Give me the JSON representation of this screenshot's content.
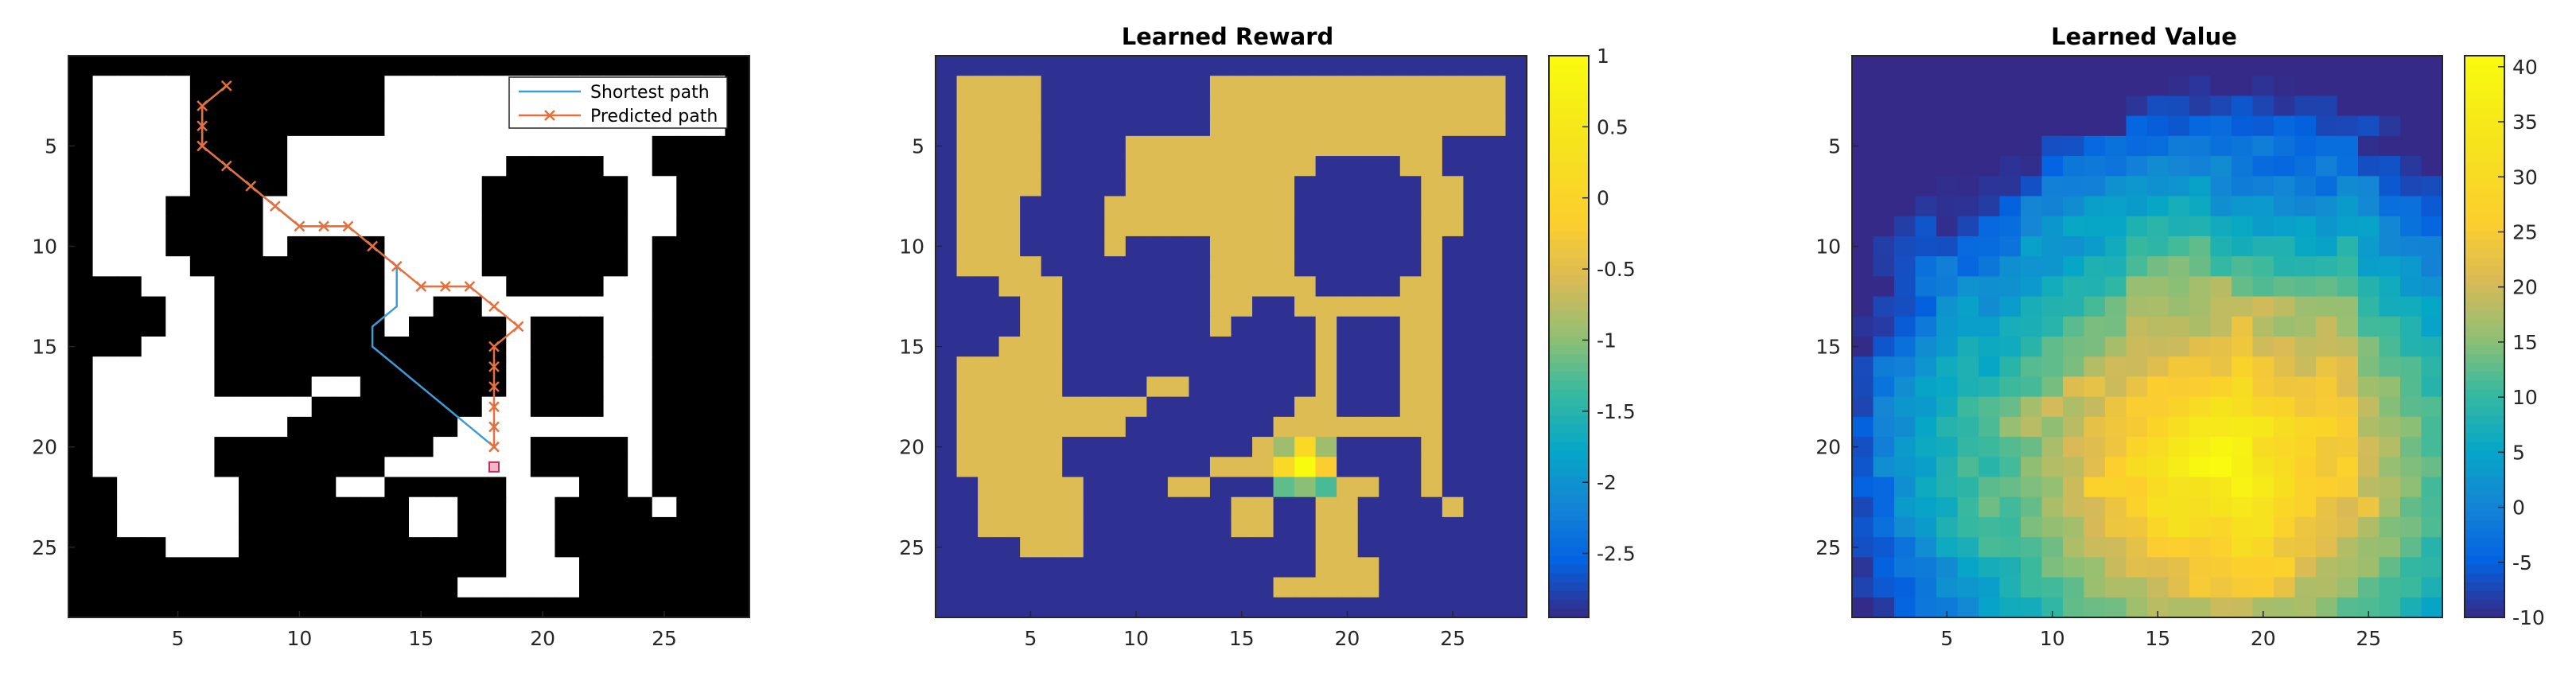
{
  "chart_data": [
    {
      "type": "heatmap",
      "title": "",
      "xlabel": "",
      "ylabel": "",
      "xlim": [
        0.5,
        28.5
      ],
      "ylim": [
        0.5,
        28.5
      ],
      "xticks": [
        "5",
        "10",
        "15",
        "20",
        "25"
      ],
      "yticks": [
        "5",
        "10",
        "15",
        "20",
        "25"
      ],
      "colormap": "gray",
      "legend": {
        "placement": "top-right",
        "entries": [
          {
            "label": "Shortest path",
            "color": "#3d9bd6",
            "marker": "none"
          },
          {
            "label": "Predicted path",
            "color": "#e5703d",
            "marker": "x"
          }
        ]
      },
      "series": [
        {
          "name": "Shortest path",
          "points": [
            [
              7,
              2
            ],
            [
              6,
              3
            ],
            [
              6,
              4
            ],
            [
              6,
              5
            ],
            [
              7,
              6
            ],
            [
              8,
              7
            ],
            [
              9,
              8
            ],
            [
              10,
              9
            ],
            [
              11,
              9
            ],
            [
              12,
              9
            ],
            [
              13,
              10
            ],
            [
              14,
              11
            ],
            [
              14,
              12
            ],
            [
              14,
              13
            ],
            [
              13,
              14
            ],
            [
              13,
              15
            ],
            [
              14,
              16
            ],
            [
              15,
              17
            ],
            [
              16,
              18
            ],
            [
              17,
              19
            ],
            [
              18,
              20
            ]
          ]
        },
        {
          "name": "Predicted path",
          "points": [
            [
              7,
              2
            ],
            [
              6,
              3
            ],
            [
              6,
              4
            ],
            [
              6,
              5
            ],
            [
              7,
              6
            ],
            [
              8,
              7
            ],
            [
              9,
              8
            ],
            [
              10,
              9
            ],
            [
              11,
              9
            ],
            [
              12,
              9
            ],
            [
              13,
              10
            ],
            [
              14,
              11
            ],
            [
              15,
              12
            ],
            [
              16,
              12
            ],
            [
              17,
              12
            ],
            [
              18,
              13
            ],
            [
              19,
              14
            ],
            [
              18,
              15
            ],
            [
              18,
              16
            ],
            [
              18,
              17
            ],
            [
              18,
              18
            ],
            [
              18,
              19
            ],
            [
              18,
              20
            ]
          ]
        }
      ],
      "goal": [
        18,
        21
      ]
    },
    {
      "type": "heatmap",
      "title": "Learned Reward",
      "xlabel": "",
      "ylabel": "",
      "xlim": [
        0.5,
        28.5
      ],
      "ylim": [
        0.5,
        28.5
      ],
      "xticks": [
        "5",
        "10",
        "15",
        "20",
        "25"
      ],
      "yticks": [
        "5",
        "10",
        "15",
        "20",
        "25"
      ],
      "colormap": "parula",
      "colorbar": {
        "range": [
          -2.95,
          1
        ],
        "ticks": [
          "1",
          "0.5",
          "0",
          "-0.5",
          "-1",
          "-1.5",
          "-2",
          "-2.5"
        ],
        "tick_values": [
          1,
          0.5,
          0,
          -0.5,
          -1,
          -1.5,
          -2,
          -2.5
        ]
      },
      "free_value": -0.55,
      "obstacle_value": -2.9,
      "border_value": -2.9,
      "goal_region": [
        {
          "x": 17,
          "y": 20,
          "value": -0.9
        },
        {
          "x": 18,
          "y": 20,
          "value": 0.1
        },
        {
          "x": 19,
          "y": 20,
          "value": -0.9
        },
        {
          "x": 17,
          "y": 21,
          "value": 0.1
        },
        {
          "x": 18,
          "y": 21,
          "value": 1
        },
        {
          "x": 19,
          "y": 21,
          "value": -0.2
        },
        {
          "x": 17,
          "y": 22,
          "value": -1.2
        },
        {
          "x": 18,
          "y": 22,
          "value": -1.0
        },
        {
          "x": 19,
          "y": 22,
          "value": -1.3
        }
      ]
    },
    {
      "type": "heatmap",
      "title": "Learned Value",
      "xlabel": "",
      "ylabel": "",
      "xlim": [
        0.5,
        28.5
      ],
      "ylim": [
        0.5,
        28.5
      ],
      "xticks": [
        "5",
        "10",
        "15",
        "20",
        "25"
      ],
      "yticks": [
        "5",
        "10",
        "15",
        "20",
        "25"
      ],
      "colormap": "parula",
      "colorbar": {
        "range": [
          -10,
          41
        ],
        "ticks": [
          "40",
          "35",
          "30",
          "25",
          "20",
          "15",
          "10",
          "5",
          "0",
          "-5",
          "-10"
        ],
        "tick_values": [
          40,
          35,
          30,
          25,
          20,
          15,
          10,
          5,
          0,
          -5,
          -10
        ]
      },
      "peak": {
        "x": 18,
        "y": 21,
        "value": 41
      },
      "min_value": -10
    }
  ],
  "grid": {
    "size": 28,
    "obstacles": [
      [
        6,
        2,
        9,
        7
      ],
      [
        9,
        2,
        13,
        4
      ],
      [
        25,
        5,
        28,
        6
      ],
      [
        5,
        8,
        8,
        10
      ],
      [
        6,
        7,
        7,
        11
      ],
      [
        18,
        7,
        23,
        11
      ],
      [
        19,
        6,
        22,
        12
      ],
      [
        26,
        7,
        28,
        14
      ],
      [
        10,
        10,
        13,
        15
      ],
      [
        7,
        11,
        13,
        16
      ],
      [
        7,
        13,
        10,
        17
      ],
      [
        1,
        13,
        4,
        14
      ],
      [
        2,
        12,
        3,
        15
      ],
      [
        25,
        10,
        28,
        22
      ],
      [
        15,
        14,
        18,
        17
      ],
      [
        16,
        13,
        17,
        18
      ],
      [
        14,
        15,
        16,
        16
      ],
      [
        20,
        14,
        22,
        18
      ],
      [
        13,
        17,
        16,
        19
      ],
      [
        14,
        16,
        15,
        20
      ],
      [
        10,
        19,
        12,
        20
      ],
      [
        11,
        18,
        12,
        21
      ],
      [
        9,
        20,
        10,
        21
      ],
      [
        12,
        20,
        13,
        21
      ],
      [
        8,
        22,
        11,
        24
      ],
      [
        12,
        23,
        15,
        26
      ],
      [
        14,
        22,
        18,
        26
      ],
      [
        21,
        23,
        24,
        25
      ],
      [
        22,
        22,
        23,
        26
      ],
      [
        20,
        20,
        23,
        21
      ],
      [
        1,
        22,
        2,
        27
      ],
      [
        1,
        25,
        4,
        28
      ],
      [
        4,
        26,
        7,
        28
      ],
      [
        8,
        24,
        11,
        28
      ],
      [
        11,
        26,
        13,
        28
      ],
      [
        14,
        25,
        16,
        28
      ],
      [
        22,
        26,
        25,
        28
      ],
      [
        25,
        24,
        28,
        28
      ],
      [
        26,
        21,
        28,
        28
      ]
    ],
    "free": [
      [
        15,
        23,
        16,
        24
      ]
    ],
    "extra_obstacles": [
      [
        7,
        20,
        8,
        21
      ]
    ]
  }
}
